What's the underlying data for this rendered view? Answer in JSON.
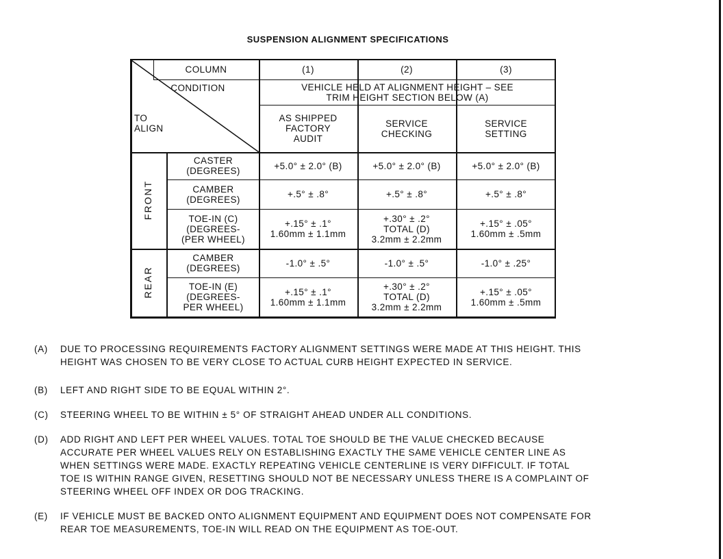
{
  "title": "SUSPENSION ALIGNMENT SPECIFICATIONS",
  "table": {
    "column_label": "COLUMN",
    "condition_label": "CONDITION",
    "to_align_label": "TO\nALIGN",
    "columns": [
      "(1)",
      "(2)",
      "(3)"
    ],
    "condition": "VEHICLE HELD AT ALIGNMENT HEIGHT – SEE\nTRIM HEIGHT SECTION BELOW (A)",
    "headers": [
      "AS SHIPPED\nFACTORY\nAUDIT",
      "SERVICE\nCHECKING",
      "SERVICE\nSETTING"
    ],
    "sections": [
      {
        "name": "FRONT",
        "rows": [
          {
            "label": "CASTER\n(DEGREES)",
            "values": [
              "+5.0° ± 2.0° (B)",
              "+5.0° ± 2.0° (B)",
              "+5.0° ± 2.0° (B)"
            ]
          },
          {
            "label": "CAMBER\n(DEGREES)",
            "values": [
              "+.5° ± .8°",
              "+.5° ± .8°",
              "+.5° ± .8°"
            ]
          },
          {
            "label": "TOE-IN (C)\n(DEGREES-\n(PER WHEEL)",
            "values": [
              "+.15° ± .1°\n1.60mm ± 1.1mm",
              "+.30° ± .2°\nTOTAL (D)\n3.2mm ± 2.2mm",
              "+.15° ± .05°\n1.60mm ± .5mm"
            ]
          }
        ]
      },
      {
        "name": "REAR",
        "rows": [
          {
            "label": "CAMBER\n(DEGREES)",
            "values": [
              "-1.0° ± .5°",
              "-1.0° ± .5°",
              "-1.0° ± .25°"
            ]
          },
          {
            "label": "TOE-IN (E)\n(DEGREES-\nPER WHEEL)",
            "values": [
              "+.15° ± .1°\n1.60mm ± 1.1mm",
              "+.30° ± .2°\nTOTAL (D)\n3.2mm ± 2.2mm",
              "+.15° ± .05°\n1.60mm ± .5mm"
            ]
          }
        ]
      }
    ]
  },
  "notes": [
    {
      "label": "(A)",
      "text": "DUE TO PROCESSING REQUIREMENTS FACTORY ALIGNMENT SETTINGS WERE MADE AT THIS HEIGHT. THIS\nHEIGHT WAS CHOSEN TO BE VERY CLOSE TO ACTUAL CURB HEIGHT EXPECTED IN SERVICE."
    },
    {
      "label": "(B)",
      "text": "LEFT AND RIGHT SIDE TO BE EQUAL WITHIN 2°."
    },
    {
      "label": "(C)",
      "text": "STEERING WHEEL TO BE WITHIN ± 5° OF STRAIGHT AHEAD UNDER ALL CONDITIONS."
    },
    {
      "label": "(D)",
      "text": "ADD RIGHT AND LEFT PER WHEEL VALUES. TOTAL TOE SHOULD BE THE VALUE CHECKED BECAUSE\nACCURATE PER WHEEL VALUES RELY ON ESTABLISHING EXACTLY THE SAME VEHICLE CENTER LINE AS\nWHEN SETTINGS WERE MADE. EXACTLY REPEATING VEHICLE CENTERLINE IS VERY DIFFICULT. IF TOTAL\nTOE IS WITHIN RANGE GIVEN, RESETTING SHOULD NOT BE NECESSARY UNLESS THERE IS A COMPLAINT OF\nSTEERING WHEEL OFF INDEX OR DOG TRACKING."
    },
    {
      "label": "(E)",
      "text": "IF VEHICLE MUST BE BACKED ONTO ALIGNMENT EQUIPMENT AND EQUIPMENT DOES NOT COMPENSATE FOR\nREAR TOE MEASUREMENTS, TOE-IN WILL READ ON THE EQUIPMENT AS TOE-OUT."
    }
  ]
}
